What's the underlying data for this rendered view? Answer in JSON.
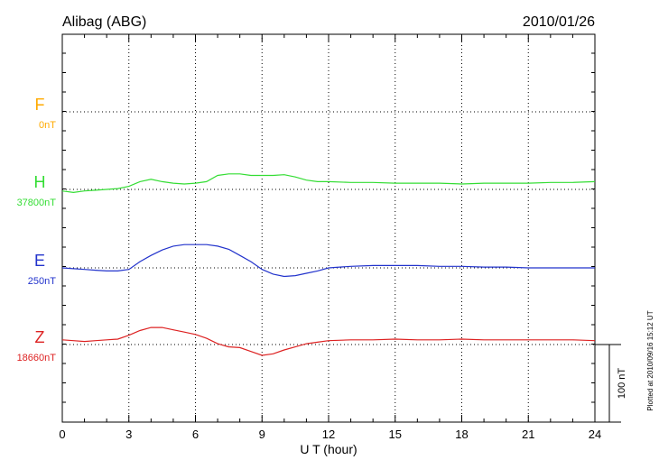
{
  "chart_data": {
    "type": "line",
    "title": "Alibag (ABG)",
    "date": "2010/01/26",
    "xlabel": "U T (hour)",
    "xlim": [
      0,
      24
    ],
    "xticks": [
      0,
      3,
      6,
      9,
      12,
      15,
      18,
      21,
      24
    ],
    "grid": true,
    "scale_bar_label": "100 nT",
    "scale_bar_nt": 100,
    "footer_note": "Plotted at 2010/09/16 15:12 UT",
    "series": [
      {
        "name": "F",
        "baseline_label": "0nT",
        "color": "#ffaa00",
        "points": []
      },
      {
        "name": "H",
        "baseline_label": "37800nT",
        "color": "#33dd33",
        "points": [
          [
            0,
            -2
          ],
          [
            0.5,
            -4
          ],
          [
            1,
            -2
          ],
          [
            1.5,
            -1
          ],
          [
            2,
            0
          ],
          [
            2.5,
            1
          ],
          [
            3,
            4
          ],
          [
            3.5,
            10
          ],
          [
            4,
            13
          ],
          [
            4.5,
            10
          ],
          [
            5,
            8
          ],
          [
            5.5,
            7
          ],
          [
            6,
            8
          ],
          [
            6.5,
            10
          ],
          [
            7,
            18
          ],
          [
            7.5,
            20
          ],
          [
            8,
            20
          ],
          [
            8.5,
            18
          ],
          [
            9,
            18
          ],
          [
            9.5,
            18
          ],
          [
            10,
            19
          ],
          [
            10.5,
            16
          ],
          [
            11,
            12
          ],
          [
            11.5,
            10
          ],
          [
            12,
            10
          ],
          [
            13,
            9
          ],
          [
            14,
            9
          ],
          [
            15,
            8
          ],
          [
            16,
            8
          ],
          [
            17,
            8
          ],
          [
            18,
            7
          ],
          [
            19,
            8
          ],
          [
            20,
            8
          ],
          [
            21,
            8
          ],
          [
            22,
            9
          ],
          [
            23,
            9
          ],
          [
            24,
            10
          ]
        ]
      },
      {
        "name": "E",
        "baseline_label": "250nT",
        "color": "#2233cc",
        "points": [
          [
            0,
            0
          ],
          [
            0.5,
            -1
          ],
          [
            1,
            -2
          ],
          [
            1.5,
            -3
          ],
          [
            2,
            -4
          ],
          [
            2.5,
            -4
          ],
          [
            3,
            -2
          ],
          [
            3.5,
            8
          ],
          [
            4,
            16
          ],
          [
            4.5,
            23
          ],
          [
            5,
            28
          ],
          [
            5.5,
            30
          ],
          [
            6,
            30
          ],
          [
            6.5,
            30
          ],
          [
            7,
            28
          ],
          [
            7.5,
            24
          ],
          [
            8,
            16
          ],
          [
            8.5,
            8
          ],
          [
            9,
            -2
          ],
          [
            9.5,
            -8
          ],
          [
            10,
            -11
          ],
          [
            10.5,
            -10
          ],
          [
            11,
            -7
          ],
          [
            11.5,
            -4
          ],
          [
            12,
            0
          ],
          [
            13,
            2
          ],
          [
            14,
            3
          ],
          [
            15,
            3
          ],
          [
            16,
            3
          ],
          [
            17,
            2
          ],
          [
            18,
            2
          ],
          [
            19,
            1
          ],
          [
            20,
            1
          ],
          [
            21,
            0
          ],
          [
            22,
            0
          ],
          [
            23,
            0
          ],
          [
            24,
            0
          ]
        ]
      },
      {
        "name": "Z",
        "baseline_label": "18660nT",
        "color": "#dd2222",
        "points": [
          [
            0,
            6
          ],
          [
            0.5,
            5
          ],
          [
            1,
            4
          ],
          [
            1.5,
            5
          ],
          [
            2,
            6
          ],
          [
            2.5,
            7
          ],
          [
            3,
            12
          ],
          [
            3.5,
            18
          ],
          [
            4,
            22
          ],
          [
            4.5,
            22
          ],
          [
            5,
            19
          ],
          [
            5.5,
            16
          ],
          [
            6,
            13
          ],
          [
            6.5,
            8
          ],
          [
            7,
            1
          ],
          [
            7.5,
            -3
          ],
          [
            8,
            -4
          ],
          [
            8.5,
            -9
          ],
          [
            9,
            -14
          ],
          [
            9.5,
            -12
          ],
          [
            10,
            -7
          ],
          [
            10.5,
            -3
          ],
          [
            11,
            1
          ],
          [
            11.5,
            3
          ],
          [
            12,
            5
          ],
          [
            13,
            6
          ],
          [
            14,
            6
          ],
          [
            15,
            7
          ],
          [
            16,
            6
          ],
          [
            17,
            6
          ],
          [
            18,
            7
          ],
          [
            19,
            6
          ],
          [
            20,
            6
          ],
          [
            21,
            6
          ],
          [
            22,
            6
          ],
          [
            23,
            6
          ],
          [
            24,
            5
          ]
        ]
      }
    ]
  }
}
